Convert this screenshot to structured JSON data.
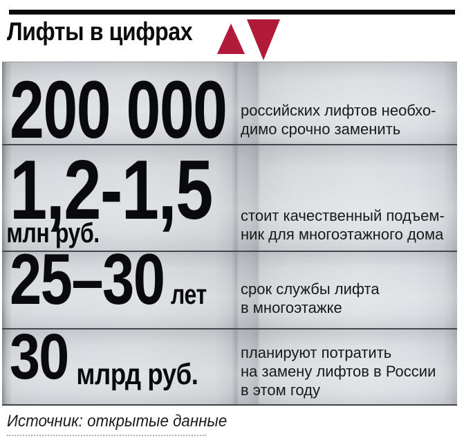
{
  "accent_color": "#b11a38",
  "header": {
    "title": "Лифты в цифрах"
  },
  "rows": [
    {
      "value": "200 000",
      "unit": "",
      "desc_lines": [
        "российских лифтов необхо-",
        "димо срочно заменить"
      ]
    },
    {
      "value": "1,2-1,5",
      "unit": "млн руб.",
      "desc_lines": [
        "стоит качественный подъем-",
        "ник для многоэтажного дома"
      ]
    },
    {
      "value": "25–30",
      "unit": "лет",
      "desc_lines": [
        "срок службы лифта",
        "в многоэтажке"
      ]
    },
    {
      "value": "30",
      "unit": "млрд руб.",
      "desc_lines": [
        "планируют потратить",
        "на замену лифтов в России",
        "в этом году"
      ]
    }
  ],
  "footer": {
    "source": "Источник: открытые данные"
  },
  "chart_data": {
    "type": "table",
    "title": "Лифты в цифрах",
    "rows": [
      {
        "value": "200 000",
        "unit": "",
        "label": "российских лифтов необходимо срочно заменить"
      },
      {
        "value": "1,2-1,5",
        "unit": "млн руб.",
        "label": "стоит качественный подъемник для многоэтажного дома"
      },
      {
        "value": "25–30",
        "unit": "лет",
        "label": "срок службы лифта в многоэтажке"
      },
      {
        "value": "30",
        "unit": "млрд руб.",
        "label": "планируют потратить на замену лифтов в России в этом году"
      }
    ],
    "source": "Источник: открытые данные"
  }
}
